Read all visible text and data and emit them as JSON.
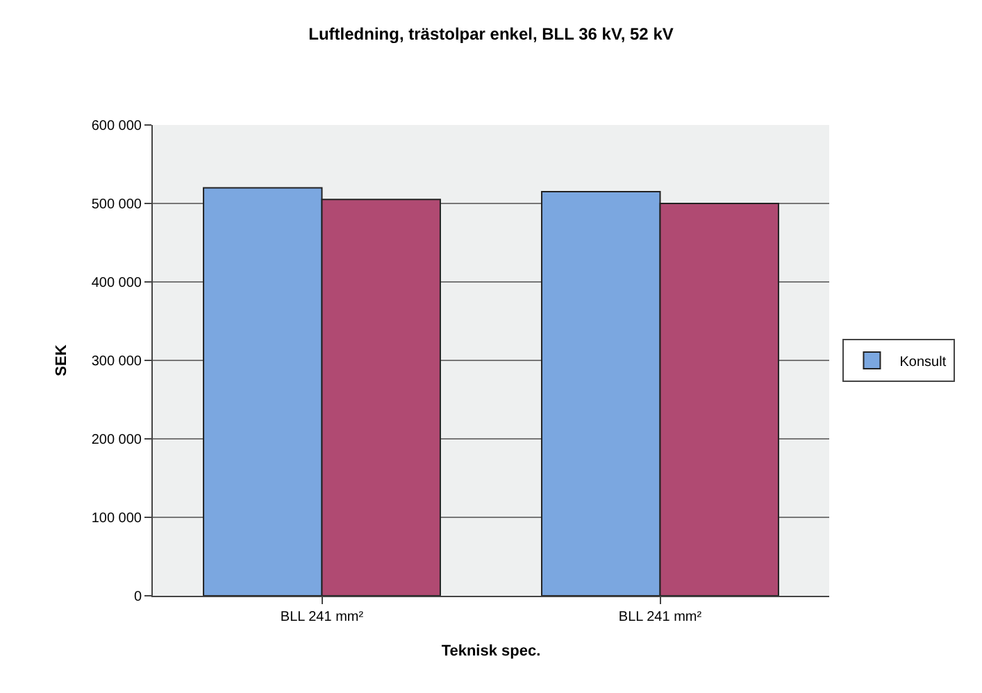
{
  "chart_data": {
    "type": "bar",
    "title": "Luftledning, trästolpar enkel, BLL 36 kV, 52 kV",
    "xlabel": "Teknisk spec.",
    "ylabel": "SEK",
    "categories": [
      "BLL 241 mm²",
      "BLL 241 mm²"
    ],
    "series": [
      {
        "name": "Konsult",
        "color": "#7ba7e0",
        "values": [
          520000,
          515000
        ]
      },
      {
        "color": "#b04a72",
        "values": [
          505000,
          500000
        ]
      }
    ],
    "ylim": [
      0,
      600000
    ],
    "yticks": [
      {
        "value": 0,
        "label": "0"
      },
      {
        "value": 100000,
        "label": "100 000"
      },
      {
        "value": 200000,
        "label": "200 000"
      },
      {
        "value": 300000,
        "label": "300 000"
      },
      {
        "value": 400000,
        "label": "400 000"
      },
      {
        "value": 500000,
        "label": "500 000"
      },
      {
        "value": 600000,
        "label": "600 000"
      }
    ],
    "grid": "y",
    "legend": "right"
  }
}
